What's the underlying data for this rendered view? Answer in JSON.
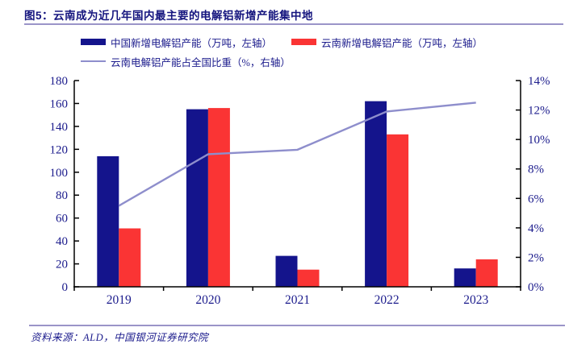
{
  "title": "图5：云南成为近几年国内最主要的电解铝新增产能集中地",
  "source": "资料来源：ALD，中国银河证券研究院",
  "colors": {
    "china_bar": "#14148C",
    "yunnan_bar": "#FA3434",
    "ratio_line": "#8E8ECC",
    "axis": "#000000",
    "text": "#1B1B8C",
    "rule": "#9A94C8"
  },
  "legend": [
    {
      "label": "中国新增电解铝产能（万吨，左轴）",
      "swatch": "bar",
      "color_key": "china_bar"
    },
    {
      "label": "云南新增电解铝产能（万吨，左轴）",
      "swatch": "bar",
      "color_key": "yunnan_bar"
    },
    {
      "label": "云南电解铝产能占全国比重（%，右轴）",
      "swatch": "line",
      "color_key": "ratio_line"
    }
  ],
  "chart_data": {
    "type": "bar",
    "subtype": "bar+line combo, dual axis",
    "categories": [
      "2019",
      "2020",
      "2021",
      "2022",
      "2023"
    ],
    "series": [
      {
        "name": "中国新增电解铝产能（万吨，左轴）",
        "type": "bar",
        "axis": "left",
        "color_key": "china_bar",
        "values": [
          114,
          155,
          27,
          162,
          16
        ]
      },
      {
        "name": "云南新增电解铝产能（万吨，左轴）",
        "type": "bar",
        "axis": "left",
        "color_key": "yunnan_bar",
        "values": [
          51,
          156,
          15,
          133,
          24
        ]
      },
      {
        "name": "云南电解铝产能占全国比重（%，右轴）",
        "type": "line",
        "axis": "right",
        "color_key": "ratio_line",
        "values": [
          5.5,
          9.0,
          9.3,
          11.9,
          12.5
        ]
      }
    ],
    "left_axis": {
      "min": 0,
      "max": 180,
      "step": 20,
      "ticks": [
        "0",
        "20",
        "40",
        "60",
        "80",
        "100",
        "120",
        "140",
        "160",
        "180"
      ]
    },
    "right_axis": {
      "min": 0,
      "max": 14,
      "step": 2,
      "ticks": [
        "0%",
        "2%",
        "4%",
        "6%",
        "8%",
        "10%",
        "12%",
        "14%"
      ]
    },
    "grid": false,
    "legend_position": "top"
  }
}
